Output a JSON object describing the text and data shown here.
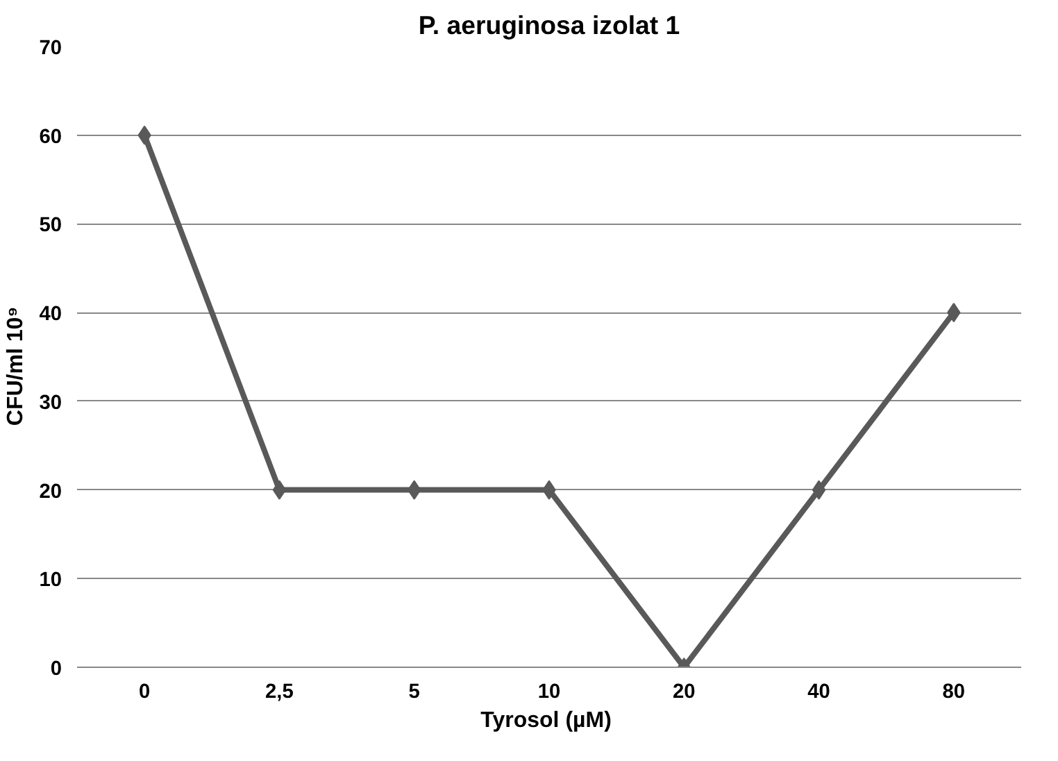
{
  "chart_data": {
    "type": "line",
    "title": "P. aeruginosa izolat 1",
    "xlabel": "Tyrosol  (µM)",
    "ylabel": "CFU/ml    10⁹",
    "categories": [
      "0",
      "2,5",
      "5",
      "10",
      "20",
      "40",
      "80"
    ],
    "series": [
      {
        "color": "#595959",
        "values": [
          60,
          20,
          20,
          20,
          0,
          20,
          40
        ]
      }
    ],
    "ylim": [
      0,
      70
    ],
    "yticks": [
      0,
      10,
      20,
      30,
      40,
      50,
      60,
      70
    ],
    "grid": "y",
    "marker": "diamond",
    "line_style": "solid"
  }
}
